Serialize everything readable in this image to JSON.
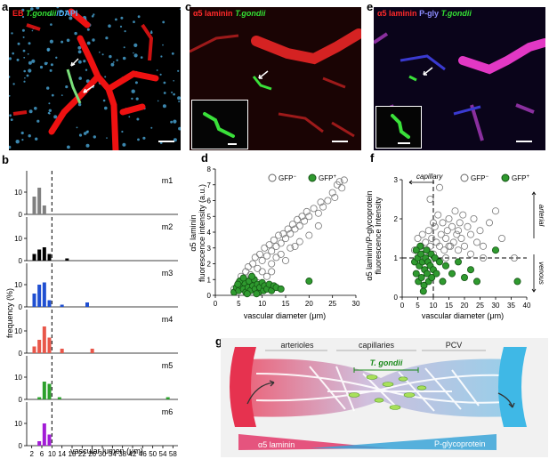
{
  "panels": {
    "a": {
      "letter": "a",
      "eb": "EB",
      "tg": "T.gondii",
      "dapi": "DAPI",
      "colors": {
        "eb": "#ff2020",
        "tg": "#34e034",
        "dapi": "#55b8ff"
      }
    },
    "c": {
      "letter": "c",
      "l1": "α5 laminin",
      "l2": "T.gondii",
      "colors": {
        "l1": "#ff2a2a",
        "l2": "#34e034"
      }
    },
    "e": {
      "letter": "e",
      "l1": "α5 laminin",
      "l2": "P-gly",
      "l3": "T.gondii",
      "colors": {
        "l1": "#ff2a2a",
        "l2": "#8c8cff",
        "l3": "#34e034"
      }
    },
    "b": {
      "letter": "b",
      "ylabel": "frequency (%)",
      "xlabel": "vascular lumen (μm)"
    },
    "d": {
      "letter": "d",
      "ylabel_1": "α5 laminin",
      "ylabel_2": "fluorescence intensity (a.u.)",
      "xlabel": "vascular diameter (μm)",
      "legend_neg": "GFP",
      "legend_pos": "GFP"
    },
    "f": {
      "letter": "f",
      "ylabel_1": "α5 laminin/P-glycoprotein",
      "ylabel_2": "fluorescence Intensity",
      "xlabel": "vascular diameter (μm)",
      "legend_neg": "GFP",
      "legend_pos": "GFP",
      "capillary": "capillary",
      "arterial": "arterial",
      "venous": "venous"
    },
    "g": {
      "letter": "g",
      "arterioles": "arterioles",
      "capillaries": "capillaries",
      "pcv": "PCV",
      "tgondii": "T. gondii",
      "laminin": "α5 laminin",
      "pgly": "P-glycoprotein"
    }
  },
  "chart_data": [
    {
      "type": "bar",
      "id": "b",
      "xlabel": "vascular lumen (μm)",
      "ylabel": "frequency (%)",
      "x_ticks": [
        2,
        6,
        10,
        14,
        18,
        22,
        26,
        30,
        34,
        38,
        42,
        46,
        50,
        54,
        58
      ],
      "ylim": [
        0,
        16
      ],
      "y_ticks": [
        0,
        10
      ],
      "dashed_line_x": 10,
      "series": [
        {
          "name": "m1",
          "color": "#808080",
          "bars": [
            [
              3,
              8
            ],
            [
              5,
              12
            ],
            [
              7,
              4
            ]
          ]
        },
        {
          "name": "m2",
          "color": "#000000",
          "bars": [
            [
              3,
              3
            ],
            [
              5,
              5
            ],
            [
              7,
              6
            ],
            [
              9,
              3
            ],
            [
              16,
              1
            ]
          ]
        },
        {
          "name": "m3",
          "color": "#1f4fd1",
          "bars": [
            [
              3,
              6
            ],
            [
              5,
              10
            ],
            [
              7,
              11
            ],
            [
              9,
              3
            ],
            [
              14,
              1
            ],
            [
              24,
              2
            ]
          ]
        },
        {
          "name": "m4",
          "color": "#e8574a",
          "bars": [
            [
              3,
              3
            ],
            [
              5,
              6
            ],
            [
              7,
              12
            ],
            [
              9,
              7
            ],
            [
              14,
              2
            ],
            [
              26,
              2
            ]
          ]
        },
        {
          "name": "m5",
          "color": "#2ca02c",
          "bars": [
            [
              5,
              1
            ],
            [
              7,
              8
            ],
            [
              9,
              7
            ],
            [
              13,
              1
            ],
            [
              56,
              1
            ]
          ]
        },
        {
          "name": "m6",
          "color": "#a21cd6",
          "bars": [
            [
              5,
              2
            ],
            [
              7,
              10
            ],
            [
              9,
              5
            ]
          ]
        }
      ]
    },
    {
      "type": "scatter",
      "id": "d",
      "xlabel": "vascular diameter (μm)",
      "ylabel": "α5 laminin fluorescence intensity (a.u.)",
      "xlim": [
        0,
        30
      ],
      "ylim": [
        0,
        8
      ],
      "x_ticks": [
        0,
        5,
        10,
        15,
        20,
        25,
        30
      ],
      "y_ticks": [
        0,
        1,
        2,
        3,
        4,
        5,
        6,
        7,
        8
      ],
      "series": [
        {
          "name": "GFP −",
          "points": [
            [
              4,
              0.4
            ],
            [
              5,
              0.8
            ],
            [
              5.5,
              1.2
            ],
            [
              6,
              1.0
            ],
            [
              6.5,
              1.5
            ],
            [
              7,
              1.8
            ],
            [
              7.5,
              1.3
            ],
            [
              8,
              2.0
            ],
            [
              8.5,
              2.4
            ],
            [
              9,
              1.7
            ],
            [
              9.5,
              2.6
            ],
            [
              10,
              2.2
            ],
            [
              10.5,
              3.0
            ],
            [
              11,
              2.5
            ],
            [
              11.5,
              3.2
            ],
            [
              12,
              2.8
            ],
            [
              12.5,
              3.5
            ],
            [
              13,
              3.1
            ],
            [
              13.5,
              3.8
            ],
            [
              14,
              3.3
            ],
            [
              14.5,
              3.9
            ],
            [
              15,
              3.6
            ],
            [
              15.5,
              4.2
            ],
            [
              16,
              3.9
            ],
            [
              16.5,
              4.5
            ],
            [
              17,
              4.2
            ],
            [
              17.5,
              4.8
            ],
            [
              18,
              4.4
            ],
            [
              18.5,
              5.0
            ],
            [
              19,
              4.7
            ],
            [
              19.5,
              5.3
            ],
            [
              20,
              5.0
            ],
            [
              21,
              5.5
            ],
            [
              22,
              5.2
            ],
            [
              22.5,
              5.9
            ],
            [
              23,
              5.6
            ],
            [
              24,
              6.0
            ],
            [
              25,
              6.5
            ],
            [
              25.5,
              6.2
            ],
            [
              26,
              7.0
            ],
            [
              26.5,
              7.2
            ],
            [
              27,
              6.8
            ],
            [
              27.5,
              7.3
            ],
            [
              8,
              1.0
            ],
            [
              10,
              1.5
            ],
            [
              12,
              2.0
            ],
            [
              14,
              2.6
            ],
            [
              16,
              3.0
            ],
            [
              18,
              3.4
            ],
            [
              12,
              1.5
            ],
            [
              15,
              2.2
            ],
            [
              20,
              3.8
            ],
            [
              22,
              4.4
            ],
            [
              9,
              0.8
            ],
            [
              11,
              1.2
            ],
            [
              6,
              0.6
            ],
            [
              7,
              0.9
            ],
            [
              13,
              2.4
            ],
            [
              17,
              3.1
            ]
          ]
        },
        {
          "name": "GFP +",
          "points": [
            [
              4,
              0.2
            ],
            [
              4.5,
              0.5
            ],
            [
              5,
              0.3
            ],
            [
              5.5,
              0.6
            ],
            [
              6,
              0.4
            ],
            [
              6.2,
              0.8
            ],
            [
              6.5,
              0.2
            ],
            [
              7,
              0.5
            ],
            [
              7.2,
              0.9
            ],
            [
              7.5,
              0.3
            ],
            [
              8,
              0.6
            ],
            [
              8.3,
              1.0
            ],
            [
              8.5,
              0.4
            ],
            [
              9,
              0.7
            ],
            [
              9.3,
              0.2
            ],
            [
              9.5,
              0.5
            ],
            [
              10,
              0.8
            ],
            [
              10.3,
              0.3
            ],
            [
              10.5,
              0.6
            ],
            [
              11,
              0.4
            ],
            [
              11.5,
              0.7
            ],
            [
              12,
              0.3
            ],
            [
              12.5,
              0.6
            ],
            [
              13,
              0.5
            ],
            [
              5.2,
              0.9
            ],
            [
              6.8,
              0.1
            ],
            [
              8.8,
              0.1
            ],
            [
              14,
              0.4
            ],
            [
              20,
              0.9
            ],
            [
              4.8,
              0.7
            ],
            [
              7.8,
              1.2
            ],
            [
              6,
              1.1
            ]
          ]
        }
      ]
    },
    {
      "type": "scatter",
      "id": "f",
      "xlabel": "vascular diameter (μm)",
      "ylabel": "α5 laminin/P-glycoprotein fluorescence Intensity",
      "xlim": [
        0,
        40
      ],
      "ylim": [
        0,
        3
      ],
      "x_ticks": [
        0,
        5,
        10,
        15,
        20,
        25,
        30,
        35,
        40
      ],
      "y_ticks": [
        0,
        1,
        2,
        3
      ],
      "hline_y": 1,
      "vline_x": 10,
      "series": [
        {
          "name": "GFP −",
          "points": [
            [
              4,
              1.2
            ],
            [
              5,
              1.5
            ],
            [
              5.5,
              1.1
            ],
            [
              6,
              1.3
            ],
            [
              6.5,
              1.6
            ],
            [
              7,
              1.0
            ],
            [
              7.5,
              1.4
            ],
            [
              8,
              1.2
            ],
            [
              8.5,
              1.7
            ],
            [
              9,
              1.3
            ],
            [
              9.5,
              1.5
            ],
            [
              10,
              1.1
            ],
            [
              10.5,
              1.8
            ],
            [
              11,
              1.4
            ],
            [
              11.5,
              2.1
            ],
            [
              12,
              1.3
            ],
            [
              12.5,
              1.6
            ],
            [
              13,
              1.9
            ],
            [
              13.5,
              1.2
            ],
            [
              14,
              1.5
            ],
            [
              14.5,
              1.7
            ],
            [
              15,
              2.0
            ],
            [
              15.5,
              1.3
            ],
            [
              16,
              1.8
            ],
            [
              16.5,
              1.4
            ],
            [
              17,
              2.2
            ],
            [
              17.5,
              1.6
            ],
            [
              18,
              1.2
            ],
            [
              18.5,
              1.9
            ],
            [
              19,
              1.5
            ],
            [
              19.5,
              2.1
            ],
            [
              20,
              1.3
            ],
            [
              21,
              1.8
            ],
            [
              22,
              1.6
            ],
            [
              23,
              2.0
            ],
            [
              24,
              1.4
            ],
            [
              25,
              1.7
            ],
            [
              26,
              1.3
            ],
            [
              28,
              1.9
            ],
            [
              30,
              2.2
            ],
            [
              32,
              1.5
            ],
            [
              36,
              1.0
            ],
            [
              9,
              2.5
            ],
            [
              12,
              2.8
            ],
            [
              10,
              1.9
            ],
            [
              7,
              1.1
            ],
            [
              6,
              0.9
            ],
            [
              14,
              1.0
            ],
            [
              22,
              1.1
            ],
            [
              26,
              1.0
            ],
            [
              15,
              1.3
            ],
            [
              18,
              1.7
            ]
          ]
        },
        {
          "name": "GFP +",
          "points": [
            [
              4,
              0.9
            ],
            [
              4.5,
              0.6
            ],
            [
              5,
              1.0
            ],
            [
              5.2,
              0.4
            ],
            [
              5.5,
              0.8
            ],
            [
              6,
              1.1
            ],
            [
              6.2,
              0.5
            ],
            [
              6.5,
              0.9
            ],
            [
              7,
              0.3
            ],
            [
              7.2,
              0.7
            ],
            [
              7.5,
              1.0
            ],
            [
              8,
              0.6
            ],
            [
              8.3,
              0.9
            ],
            [
              8.5,
              0.4
            ],
            [
              9,
              0.8
            ],
            [
              9.3,
              1.1
            ],
            [
              9.5,
              0.5
            ],
            [
              10,
              0.7
            ],
            [
              10.5,
              1.0
            ],
            [
              11,
              0.6
            ],
            [
              12,
              0.9
            ],
            [
              13,
              0.4
            ],
            [
              14,
              0.8
            ],
            [
              16,
              0.6
            ],
            [
              18,
              0.9
            ],
            [
              20,
              0.5
            ],
            [
              22,
              0.7
            ],
            [
              24,
              0.4
            ],
            [
              30,
              1.2
            ],
            [
              37,
              0.4
            ],
            [
              5.8,
              1.3
            ],
            [
              7.8,
              1.2
            ],
            [
              4.5,
              1.2
            ],
            [
              6.8,
              0.15
            ]
          ]
        }
      ]
    }
  ]
}
